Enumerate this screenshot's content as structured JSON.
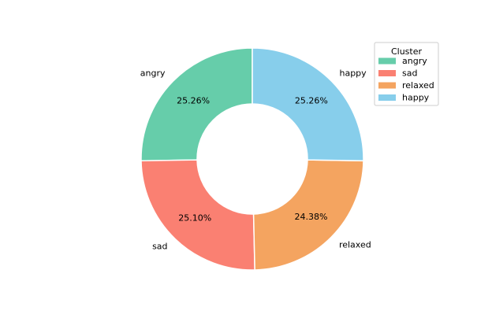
{
  "chart_data": {
    "type": "pie",
    "style": "donut",
    "title": "",
    "categories": [
      "angry",
      "sad",
      "relaxed",
      "happy"
    ],
    "values": [
      25.26,
      25.1,
      24.38,
      25.26
    ],
    "value_labels": [
      "25.26%",
      "25.10%",
      "24.38%",
      "25.26%"
    ],
    "colors": [
      "#66cdaa",
      "#fa8072",
      "#f4a460",
      "#87ceeb"
    ],
    "start_angle_deg": 90,
    "direction": "counterclockwise",
    "legend": {
      "title": "Cluster",
      "placement": "upper-right"
    }
  }
}
